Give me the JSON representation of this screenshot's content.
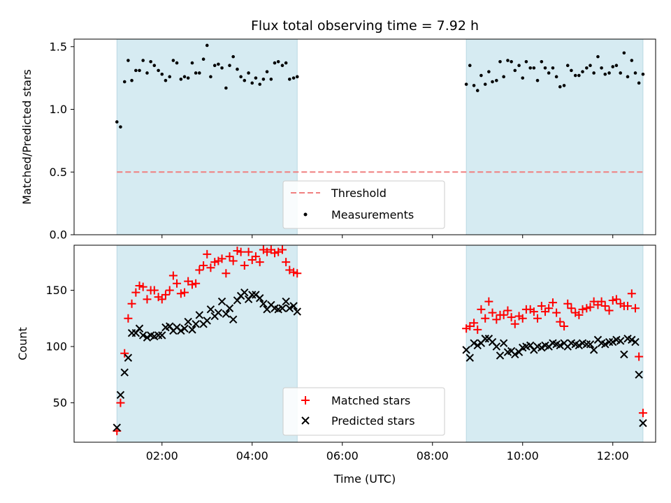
{
  "chart_data": [
    {
      "type": "scatter",
      "title": "Flux total observing time = 7.92 h",
      "xlabel": "",
      "ylabel": "Matched/Predicted stars",
      "xlim": [
        0.05,
        12.95
      ],
      "ylim": [
        0.0,
        1.56
      ],
      "yticks": [
        0.0,
        0.5,
        1.0,
        1.5
      ],
      "ytick_labels": [
        "0.0",
        "0.5",
        "1.0",
        "1.5"
      ],
      "shaded_intervals": [
        [
          1.0,
          5.0
        ],
        [
          8.75,
          12.67
        ]
      ],
      "threshold": {
        "label": "Threshold",
        "value": 0.5,
        "x_range": [
          1.0,
          12.67
        ],
        "color": "#f08080"
      },
      "legend": {
        "placement": "lower-center",
        "entries": [
          "Threshold",
          "Measurements"
        ]
      },
      "series": [
        {
          "name": "Measurements",
          "color": "#000000",
          "x": [
            1.0,
            1.08,
            1.17,
            1.25,
            1.33,
            1.42,
            1.5,
            1.58,
            1.67,
            1.75,
            1.83,
            1.92,
            2.0,
            2.08,
            2.17,
            2.25,
            2.33,
            2.42,
            2.5,
            2.58,
            2.67,
            2.75,
            2.83,
            2.92,
            3.0,
            3.08,
            3.17,
            3.25,
            3.33,
            3.42,
            3.5,
            3.58,
            3.67,
            3.75,
            3.83,
            3.92,
            4.0,
            4.08,
            4.17,
            4.25,
            4.33,
            4.42,
            4.5,
            4.58,
            4.67,
            4.75,
            4.83,
            4.92,
            5.0,
            8.75,
            8.83,
            8.92,
            9.0,
            9.08,
            9.17,
            9.25,
            9.33,
            9.42,
            9.5,
            9.58,
            9.67,
            9.75,
            9.83,
            9.92,
            10.0,
            10.08,
            10.17,
            10.25,
            10.33,
            10.42,
            10.5,
            10.58,
            10.67,
            10.75,
            10.83,
            10.92,
            11.0,
            11.08,
            11.17,
            11.25,
            11.33,
            11.42,
            11.5,
            11.58,
            11.67,
            11.75,
            11.83,
            11.92,
            12.0,
            12.08,
            12.17,
            12.25,
            12.33,
            12.42,
            12.5,
            12.58,
            12.67
          ],
          "y": [
            0.9,
            0.86,
            1.22,
            1.39,
            1.23,
            1.31,
            1.31,
            1.39,
            1.29,
            1.38,
            1.35,
            1.31,
            1.28,
            1.23,
            1.26,
            1.39,
            1.37,
            1.24,
            1.26,
            1.25,
            1.37,
            1.29,
            1.29,
            1.4,
            1.51,
            1.26,
            1.35,
            1.36,
            1.33,
            1.17,
            1.35,
            1.42,
            1.32,
            1.26,
            1.23,
            1.29,
            1.21,
            1.25,
            1.2,
            1.24,
            1.3,
            1.24,
            1.37,
            1.38,
            1.35,
            1.37,
            1.24,
            1.25,
            1.26,
            1.2,
            1.35,
            1.19,
            1.15,
            1.27,
            1.2,
            1.3,
            1.22,
            1.23,
            1.38,
            1.26,
            1.39,
            1.38,
            1.31,
            1.35,
            1.25,
            1.38,
            1.33,
            1.33,
            1.23,
            1.38,
            1.33,
            1.29,
            1.33,
            1.26,
            1.18,
            1.19,
            1.35,
            1.31,
            1.27,
            1.27,
            1.3,
            1.33,
            1.35,
            1.29,
            1.42,
            1.33,
            1.28,
            1.29,
            1.34,
            1.35,
            1.29,
            1.45,
            1.26,
            1.39,
            1.29,
            1.21,
            1.28
          ]
        }
      ]
    },
    {
      "type": "scatter",
      "title": "",
      "xlabel": "Time (UTC)",
      "ylabel": "Count",
      "xlim": [
        0.05,
        12.95
      ],
      "ylim": [
        15,
        190
      ],
      "yticks": [
        50,
        100,
        150
      ],
      "ytick_labels": [
        "50",
        "100",
        "150"
      ],
      "xticks": [
        2,
        4,
        6,
        8,
        10,
        12
      ],
      "xtick_labels": [
        "02:00",
        "04:00",
        "06:00",
        "08:00",
        "10:00",
        "12:00"
      ],
      "shaded_intervals": [
        [
          1.0,
          5.0
        ],
        [
          8.75,
          12.67
        ]
      ],
      "legend": {
        "placement": "lower-center",
        "entries": [
          "Matched stars",
          "Predicted stars"
        ]
      },
      "series": [
        {
          "name": "Matched stars",
          "marker": "plus",
          "color": "#ff0000",
          "x": [
            1.0,
            1.08,
            1.17,
            1.25,
            1.33,
            1.42,
            1.5,
            1.58,
            1.67,
            1.75,
            1.83,
            1.92,
            2.0,
            2.08,
            2.17,
            2.25,
            2.33,
            2.42,
            2.5,
            2.58,
            2.67,
            2.75,
            2.83,
            2.92,
            3.0,
            3.08,
            3.17,
            3.25,
            3.33,
            3.42,
            3.5,
            3.58,
            3.67,
            3.75,
            3.83,
            3.92,
            4.0,
            4.08,
            4.17,
            4.25,
            4.33,
            4.42,
            4.5,
            4.58,
            4.67,
            4.75,
            4.83,
            4.92,
            5.0,
            8.75,
            8.83,
            8.92,
            9.0,
            9.08,
            9.17,
            9.25,
            9.33,
            9.42,
            9.5,
            9.58,
            9.67,
            9.75,
            9.83,
            9.92,
            10.0,
            10.08,
            10.17,
            10.25,
            10.33,
            10.42,
            10.5,
            10.58,
            10.67,
            10.75,
            10.83,
            10.92,
            11.0,
            11.08,
            11.17,
            11.25,
            11.33,
            11.42,
            11.5,
            11.58,
            11.67,
            11.75,
            11.83,
            11.92,
            12.0,
            12.08,
            12.17,
            12.25,
            12.33,
            12.42,
            12.5,
            12.58,
            12.67
          ],
          "y": [
            25,
            50,
            94,
            125,
            138,
            148,
            154,
            153,
            142,
            150,
            150,
            144,
            142,
            146,
            150,
            163,
            156,
            147,
            148,
            158,
            155,
            156,
            168,
            172,
            182,
            170,
            175,
            176,
            178,
            165,
            180,
            176,
            185,
            184,
            172,
            184,
            177,
            180,
            175,
            186,
            184,
            186,
            183,
            184,
            186,
            175,
            168,
            166,
            165,
            116,
            118,
            121,
            115,
            133,
            125,
            140,
            130,
            124,
            128,
            128,
            132,
            126,
            120,
            127,
            125,
            133,
            133,
            131,
            125,
            136,
            131,
            134,
            139,
            130,
            122,
            118,
            138,
            134,
            130,
            128,
            133,
            134,
            135,
            140,
            137,
            140,
            136,
            132,
            141,
            142,
            138,
            136,
            136,
            147,
            134,
            91,
            41
          ]
        },
        {
          "name": "Predicted stars",
          "marker": "cross",
          "color": "#000000",
          "x": [
            1.0,
            1.08,
            1.17,
            1.25,
            1.33,
            1.42,
            1.5,
            1.58,
            1.67,
            1.75,
            1.83,
            1.92,
            2.0,
            2.08,
            2.17,
            2.25,
            2.33,
            2.42,
            2.5,
            2.58,
            2.67,
            2.75,
            2.83,
            2.92,
            3.0,
            3.08,
            3.17,
            3.25,
            3.33,
            3.42,
            3.5,
            3.58,
            3.67,
            3.75,
            3.83,
            3.92,
            4.0,
            4.08,
            4.17,
            4.25,
            4.33,
            4.42,
            4.5,
            4.58,
            4.67,
            4.75,
            4.83,
            4.92,
            5.0,
            8.75,
            8.83,
            8.92,
            9.0,
            9.08,
            9.17,
            9.25,
            9.33,
            9.42,
            9.5,
            9.58,
            9.67,
            9.75,
            9.83,
            9.92,
            10.0,
            10.08,
            10.17,
            10.25,
            10.33,
            10.42,
            10.5,
            10.58,
            10.67,
            10.75,
            10.83,
            10.92,
            11.0,
            11.08,
            11.17,
            11.25,
            11.33,
            11.42,
            11.5,
            11.58,
            11.67,
            11.75,
            11.83,
            11.92,
            12.0,
            12.08,
            12.17,
            12.25,
            12.33,
            12.42,
            12.5,
            12.58,
            12.67
          ],
          "y": [
            28,
            57,
            77,
            90,
            112,
            112,
            116,
            110,
            108,
            110,
            109,
            110,
            110,
            117,
            118,
            114,
            117,
            114,
            116,
            122,
            115,
            120,
            128,
            120,
            123,
            133,
            127,
            130,
            140,
            129,
            134,
            124,
            141,
            145,
            148,
            142,
            146,
            146,
            143,
            138,
            133,
            137,
            134,
            133,
            134,
            140,
            134,
            136,
            131,
            97,
            90,
            103,
            101,
            103,
            107,
            107,
            104,
            100,
            92,
            103,
            95,
            96,
            93,
            95,
            99,
            100,
            101,
            97,
            100,
            99,
            101,
            100,
            103,
            102,
            101,
            103,
            100,
            103,
            102,
            101,
            103,
            102,
            102,
            97,
            106,
            103,
            102,
            104,
            104,
            106,
            105,
            93,
            107,
            106,
            104,
            75,
            32
          ]
        }
      ]
    }
  ]
}
